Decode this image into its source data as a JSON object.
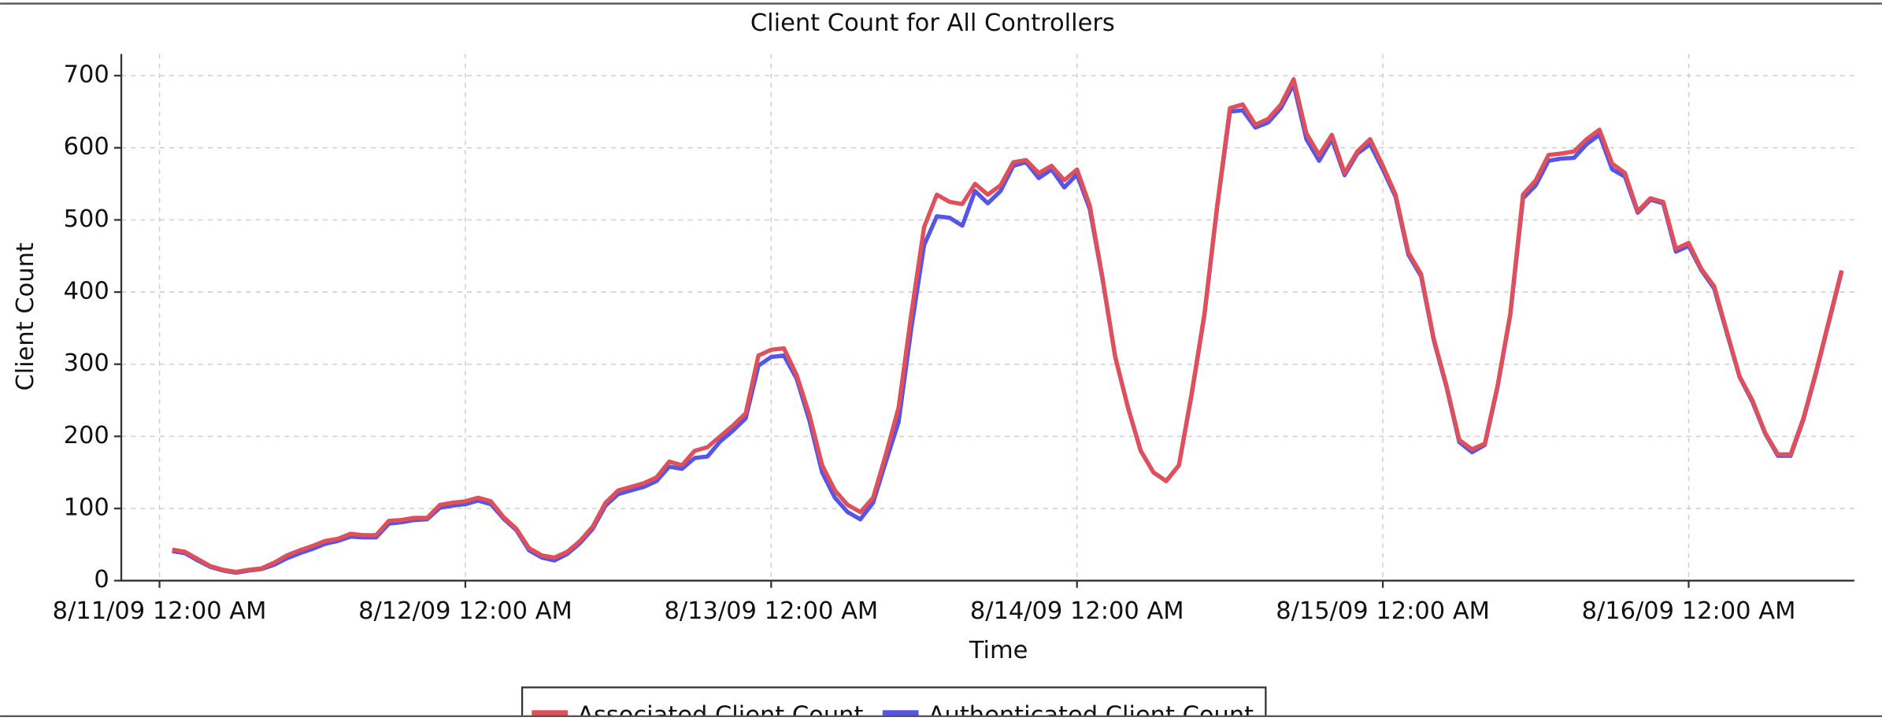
{
  "chart_data": {
    "type": "line",
    "title": "Client Count for All Controllers",
    "x_label": "Time",
    "y_label": "Client Count",
    "x": [
      1,
      2,
      3,
      4,
      5,
      6,
      7,
      8,
      9,
      10,
      11,
      12,
      13,
      14,
      15,
      16,
      17,
      18,
      19,
      20,
      21,
      22,
      23,
      24,
      25,
      26,
      27,
      28,
      29,
      30,
      31,
      32,
      33,
      34,
      35,
      36,
      37,
      38,
      39,
      40,
      41,
      42,
      43,
      44,
      45,
      46,
      47,
      48,
      49,
      50,
      51,
      52,
      53,
      54,
      55,
      56,
      57,
      58,
      59,
      60,
      61,
      62,
      63,
      64,
      65,
      66,
      67,
      68,
      69,
      70,
      71,
      72,
      73,
      74,
      75,
      76,
      77,
      78,
      79,
      80,
      81,
      82,
      83,
      84,
      85,
      86,
      87,
      88,
      89,
      90,
      91,
      92,
      93,
      94,
      95,
      96,
      97,
      98,
      99,
      100,
      101,
      102,
      103,
      104,
      105,
      106,
      107,
      108,
      109,
      110,
      111,
      112,
      113,
      114,
      115,
      116,
      117,
      118,
      119,
      120,
      121,
      122,
      123,
      124,
      125,
      126,
      127,
      128,
      129,
      130,
      131,
      132
    ],
    "series": [
      {
        "name": "Associated Client Count",
        "color": "#e0505a",
        "values": [
          43,
          40,
          30,
          20,
          15,
          12,
          15,
          17,
          25,
          35,
          42,
          48,
          55,
          58,
          65,
          63,
          63,
          83,
          84,
          87,
          87,
          105,
          108,
          110,
          115,
          110,
          88,
          72,
          45,
          35,
          32,
          40,
          55,
          75,
          108,
          125,
          130,
          135,
          143,
          165,
          160,
          180,
          185,
          200,
          215,
          232,
          312,
          320,
          322,
          285,
          230,
          160,
          125,
          105,
          95,
          115,
          175,
          240,
          370,
          490,
          535,
          525,
          522,
          550,
          535,
          548,
          580,
          583,
          565,
          575,
          555,
          570,
          520,
          420,
          310,
          240,
          180,
          150,
          138,
          160,
          260,
          370,
          520,
          655,
          660,
          632,
          640,
          660,
          695,
          620,
          590,
          618,
          565,
          595,
          612,
          575,
          535,
          455,
          425,
          335,
          270,
          195,
          182,
          190,
          270,
          370,
          535,
          555,
          590,
          592,
          595,
          612,
          625,
          578,
          565,
          512,
          530,
          525,
          460,
          468,
          432,
          408,
          345,
          283,
          250,
          205,
          175,
          175,
          225,
          290,
          360,
          430
        ]
      },
      {
        "name": "Authenticated Client Count",
        "color": "#5555e8",
        "values": [
          41,
          38,
          28,
          19,
          14,
          11,
          14,
          16,
          22,
          31,
          38,
          44,
          51,
          55,
          61,
          60,
          60,
          79,
          81,
          84,
          85,
          101,
          104,
          106,
          111,
          106,
          86,
          70,
          42,
          32,
          28,
          37,
          52,
          72,
          104,
          120,
          125,
          130,
          138,
          158,
          155,
          170,
          172,
          193,
          208,
          225,
          298,
          310,
          312,
          280,
          222,
          150,
          115,
          95,
          85,
          108,
          165,
          220,
          350,
          465,
          505,
          503,
          492,
          540,
          523,
          540,
          575,
          580,
          558,
          570,
          545,
          563,
          515,
          418,
          310,
          240,
          180,
          150,
          138,
          160,
          258,
          368,
          518,
          650,
          652,
          628,
          635,
          655,
          688,
          612,
          582,
          612,
          562,
          592,
          605,
          570,
          532,
          452,
          422,
          333,
          268,
          192,
          178,
          188,
          268,
          368,
          530,
          548,
          582,
          585,
          586,
          605,
          618,
          570,
          560,
          510,
          528,
          523,
          456,
          464,
          430,
          405,
          343,
          282,
          248,
          204,
          173,
          173,
          223,
          288,
          358,
          428
        ]
      }
    ],
    "xlim": [
      -3,
      133
    ],
    "xticks": [
      {
        "value": 0,
        "label": "8/11/09 12:00 AM"
      },
      {
        "value": 24,
        "label": "8/12/09 12:00 AM"
      },
      {
        "value": 48,
        "label": "8/13/09 12:00 AM"
      },
      {
        "value": 72,
        "label": "8/14/09 12:00 AM"
      },
      {
        "value": 96,
        "label": "8/15/09 12:00 AM"
      },
      {
        "value": 120,
        "label": "8/16/09 12:00 AM"
      }
    ],
    "ylim": [
      0,
      730
    ],
    "yticks": [
      0,
      100,
      200,
      300,
      400,
      500,
      600,
      700
    ],
    "grid": true,
    "legend": "bottom"
  }
}
